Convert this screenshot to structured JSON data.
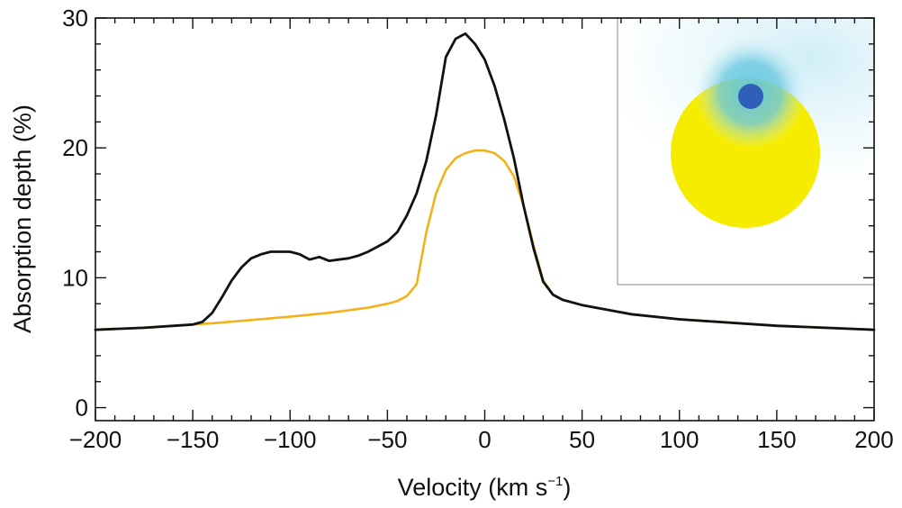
{
  "chart_data": {
    "type": "line",
    "title": "",
    "xlabel": "Velocity (km s",
    "xlabel_sup": "−1",
    "xlabel_end": ")",
    "ylabel": "Absorption depth (%)",
    "xlim": [
      -200,
      200
    ],
    "ylim": [
      -1,
      30
    ],
    "x_ticks": [
      -200,
      -150,
      -100,
      -50,
      0,
      50,
      100,
      150,
      200
    ],
    "x_tick_labels": [
      "−200",
      "−150",
      "−100",
      "−50",
      "0",
      "50",
      "100",
      "150",
      "200"
    ],
    "y_ticks": [
      0,
      10,
      20,
      30
    ],
    "y_tick_labels": [
      "0",
      "10",
      "20",
      "30"
    ],
    "grid": false,
    "legend": "none",
    "series": [
      {
        "color": "#f2b21b",
        "x": [
          -200,
          -175,
          -150,
          -140,
          -120,
          -100,
          -80,
          -60,
          -50,
          -45,
          -40,
          -35,
          -30,
          -25,
          -20,
          -15,
          -10,
          -5,
          0,
          5,
          10,
          15,
          20,
          25,
          30,
          35,
          40,
          50,
          75,
          100,
          150,
          200
        ],
        "y": [
          6.0,
          6.15,
          6.4,
          6.5,
          6.75,
          7.0,
          7.3,
          7.7,
          8.0,
          8.2,
          8.6,
          9.5,
          13.5,
          16.5,
          18.3,
          19.2,
          19.6,
          19.8,
          19.8,
          19.6,
          19.0,
          17.8,
          15.5,
          12.5,
          9.8,
          8.7,
          8.3,
          7.9,
          7.2,
          6.8,
          6.3,
          6.0
        ]
      },
      {
        "color": "#111111",
        "x": [
          -200,
          -175,
          -150,
          -145,
          -140,
          -135,
          -130,
          -125,
          -120,
          -115,
          -110,
          -105,
          -100,
          -95,
          -90,
          -85,
          -80,
          -75,
          -70,
          -65,
          -60,
          -55,
          -50,
          -45,
          -40,
          -35,
          -30,
          -25,
          -20,
          -15,
          -10,
          -5,
          0,
          5,
          10,
          15,
          20,
          25,
          30,
          35,
          40,
          50,
          75,
          100,
          150,
          200
        ],
        "y": [
          6.0,
          6.15,
          6.4,
          6.6,
          7.3,
          8.5,
          9.8,
          10.8,
          11.5,
          11.8,
          12.0,
          12.0,
          12.0,
          11.8,
          11.4,
          11.6,
          11.3,
          11.4,
          11.5,
          11.7,
          12.0,
          12.4,
          12.8,
          13.5,
          14.8,
          16.5,
          19.0,
          22.5,
          27.0,
          28.4,
          28.8,
          28.0,
          26.8,
          24.8,
          22.2,
          19.2,
          15.5,
          12.3,
          9.7,
          8.7,
          8.3,
          7.9,
          7.2,
          6.8,
          6.3,
          6.0
        ]
      }
    ],
    "inset": {
      "type": "image",
      "description_colors": {
        "star": "#f5ec00",
        "gas_cloud": "#6cc9e0",
        "planet": "#2f5fb8",
        "frame": "#999999"
      }
    }
  }
}
